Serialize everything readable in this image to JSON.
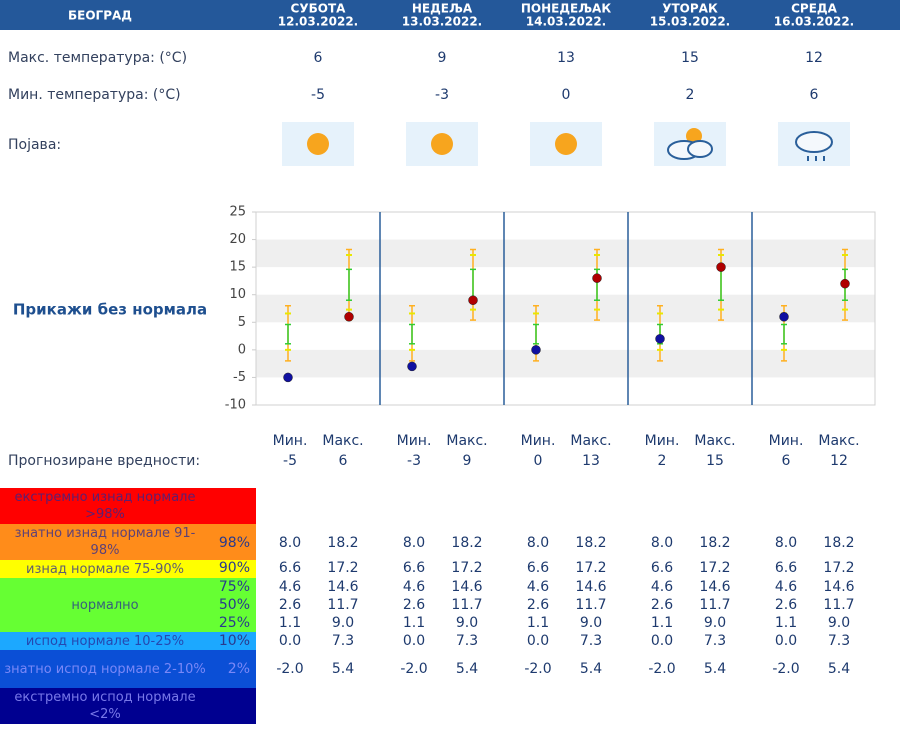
{
  "header": {
    "city": "БЕОГРАД",
    "days": [
      {
        "name": "СУБОТА",
        "date": "12.03.2022."
      },
      {
        "name": "НЕДЕЉА",
        "date": "13.03.2022."
      },
      {
        "name": "ПОНЕДЕЉАК",
        "date": "14.03.2022."
      },
      {
        "name": "УТОРАК",
        "date": "15.03.2022."
      },
      {
        "name": "СРЕДА",
        "date": "16.03.2022."
      }
    ]
  },
  "max_temp": {
    "label": "Макс. температура: (°C)",
    "values": [
      6,
      9,
      13,
      15,
      12
    ]
  },
  "min_temp": {
    "label": "Мин. температура: (°C)",
    "values": [
      -5,
      -3,
      0,
      2,
      6
    ]
  },
  "phenomenon": {
    "label": "Појава:"
  },
  "chart": {
    "link": "Прикажи без нормала",
    "ylim": [
      -10,
      25
    ],
    "yticks": [
      -10,
      -5,
      0,
      5,
      10,
      15,
      20,
      25
    ],
    "min_color": "#1010a0",
    "max_color": "#b00000"
  },
  "forecast": {
    "label": "Прогнозиране вредности:",
    "min_label": "Мин.",
    "max_label": "Макс."
  },
  "normals": {
    "categories": [
      {
        "label": "екстремно изнад нормале >98%",
        "color": "#ff0000"
      },
      {
        "label": "знатно изнад нормале 91-98%",
        "color": "#ff8c1a"
      },
      {
        "label": "изнад нормале 75-90%",
        "color": "#ffff00"
      },
      {
        "label": "нормално",
        "color": "#66ff33"
      },
      {
        "label": "испод нормале 10-25%",
        "color": "#1ca8ff"
      },
      {
        "label": "знатно испод нормале 2-10%",
        "color": "#0b4fd6"
      },
      {
        "label": "екстремно испод нормале <2%",
        "color": "#000090"
      }
    ],
    "percentiles": [
      "98%",
      "90%",
      "75%",
      "50%",
      "25%",
      "10%",
      "2%"
    ],
    "days": [
      {
        "min": [
          {
            "value": 8,
            "label": "8.0"
          },
          6.6,
          4.6,
          2.6,
          1.1,
          {
            "value": 0,
            "label": "0.0"
          },
          {
            "value": -2,
            "label": "-2.0"
          }
        ],
        "max": [
          18.2,
          17.2,
          14.6,
          11.7,
          {
            "value": 9,
            "label": "9.0"
          },
          7.3,
          5.4
        ]
      },
      {
        "min": [
          {
            "value": 8,
            "label": "8.0"
          },
          6.6,
          4.6,
          2.6,
          1.1,
          {
            "value": 0,
            "label": "0.0"
          },
          {
            "value": -2,
            "label": "-2.0"
          }
        ],
        "max": [
          18.2,
          17.2,
          14.6,
          11.7,
          {
            "value": 9,
            "label": "9.0"
          },
          7.3,
          5.4
        ]
      },
      {
        "min": [
          {
            "value": 8,
            "label": "8.0"
          },
          6.6,
          4.6,
          2.6,
          1.1,
          {
            "value": 0,
            "label": "0.0"
          },
          {
            "value": -2,
            "label": "-2.0"
          }
        ],
        "max": [
          18.2,
          17.2,
          14.6,
          11.7,
          {
            "value": 9,
            "label": "9.0"
          },
          7.3,
          5.4
        ]
      },
      {
        "min": [
          {
            "value": 8,
            "label": "8.0"
          },
          6.6,
          4.6,
          2.6,
          1.1,
          {
            "value": 0,
            "label": "0.0"
          },
          {
            "value": -2,
            "label": "-2.0"
          }
        ],
        "max": [
          18.2,
          17.2,
          14.6,
          11.7,
          {
            "value": 9,
            "label": "9.0"
          },
          7.3,
          5.4
        ]
      },
      {
        "min": [
          {
            "value": 8,
            "label": "8.0"
          },
          6.6,
          4.6,
          2.6,
          1.1,
          {
            "value": 0,
            "label": "0.0"
          },
          {
            "value": -2,
            "label": "-2.0"
          }
        ],
        "max": [
          18.2,
          17.2,
          14.6,
          11.7,
          {
            "value": 9,
            "label": "9.0"
          },
          7.3,
          5.4
        ]
      }
    ]
  }
}
